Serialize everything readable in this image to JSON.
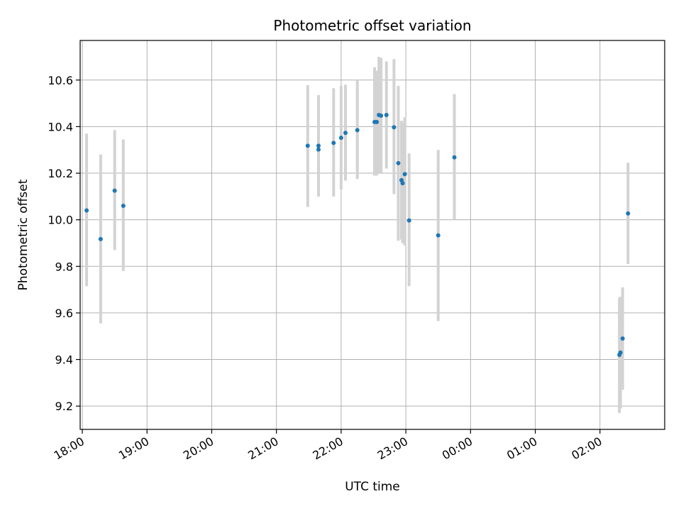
{
  "chart_data": {
    "type": "scatter",
    "title": "Photometric offset variation",
    "xlabel": "UTC time",
    "ylabel": "Photometric offset",
    "grid": true,
    "x_ticks": [
      "18:00",
      "19:00",
      "20:00",
      "21:00",
      "22:00",
      "23:00",
      "00:00",
      "01:00",
      "02:00"
    ],
    "y_ticks": [
      "9.2",
      "9.4",
      "9.6",
      "9.8",
      "10.0",
      "10.2",
      "10.4",
      "10.6"
    ],
    "xlim": [
      "17:58",
      "03:00"
    ],
    "ylim": [
      9.1,
      10.77
    ],
    "colors": {
      "point": "#1f77b4",
      "errorbar": "#d3d3d3",
      "grid": "#b0b0b0"
    },
    "points": [
      {
        "x": "18:04",
        "y": 10.04,
        "ymin": 9.715,
        "ymax": 10.37
      },
      {
        "x": "18:17",
        "y": 9.917,
        "ymin": 9.555,
        "ymax": 10.28
      },
      {
        "x": "18:30",
        "y": 10.125,
        "ymin": 9.87,
        "ymax": 10.385
      },
      {
        "x": "18:38",
        "y": 10.06,
        "ymin": 9.78,
        "ymax": 10.345
      },
      {
        "x": "21:29",
        "y": 10.318,
        "ymin": 10.055,
        "ymax": 10.578
      },
      {
        "x": "21:39",
        "y": 10.318,
        "ymin": 10.1,
        "ymax": 10.535
      },
      {
        "x": "21:39",
        "y": 10.302,
        "ymin": 10.1,
        "ymax": 10.535
      },
      {
        "x": "21:53",
        "y": 10.33,
        "ymin": 10.1,
        "ymax": 10.565
      },
      {
        "x": "22:00",
        "y": 10.352,
        "ymin": 10.13,
        "ymax": 10.575
      },
      {
        "x": "22:04",
        "y": 10.373,
        "ymin": 10.168,
        "ymax": 10.58
      },
      {
        "x": "22:15",
        "y": 10.385,
        "ymin": 10.175,
        "ymax": 10.6
      },
      {
        "x": "22:31",
        "y": 10.42,
        "ymin": 10.19,
        "ymax": 10.655
      },
      {
        "x": "22:33",
        "y": 10.42,
        "ymin": 10.19,
        "ymax": 10.64
      },
      {
        "x": "22:35",
        "y": 10.45,
        "ymin": 10.2,
        "ymax": 10.7
      },
      {
        "x": "22:37",
        "y": 10.447,
        "ymin": 10.2,
        "ymax": 10.695
      },
      {
        "x": "22:42",
        "y": 10.45,
        "ymin": 10.22,
        "ymax": 10.68
      },
      {
        "x": "22:49",
        "y": 10.397,
        "ymin": 10.11,
        "ymax": 10.69
      },
      {
        "x": "22:53",
        "y": 10.243,
        "ymin": 9.91,
        "ymax": 10.575
      },
      {
        "x": "22:56",
        "y": 10.17,
        "ymin": 9.915,
        "ymax": 10.425
      },
      {
        "x": "22:57",
        "y": 10.157,
        "ymin": 9.9,
        "ymax": 10.415
      },
      {
        "x": "22:59",
        "y": 10.196,
        "ymin": 9.89,
        "ymax": 10.44
      },
      {
        "x": "23:03",
        "y": 9.997,
        "ymin": 9.715,
        "ymax": 10.285
      },
      {
        "x": "23:30",
        "y": 9.933,
        "ymin": 9.565,
        "ymax": 10.3
      },
      {
        "x": "23:45",
        "y": 10.268,
        "ymin": 10.0,
        "ymax": 10.54
      },
      {
        "x": "02:18",
        "y": 9.42,
        "ymin": 9.17,
        "ymax": 9.665
      },
      {
        "x": "02:19",
        "y": 9.43,
        "ymin": 9.19,
        "ymax": 9.67
      },
      {
        "x": "02:21",
        "y": 9.49,
        "ymin": 9.27,
        "ymax": 9.71
      },
      {
        "x": "02:26",
        "y": 10.027,
        "ymin": 9.81,
        "ymax": 10.245
      }
    ]
  }
}
